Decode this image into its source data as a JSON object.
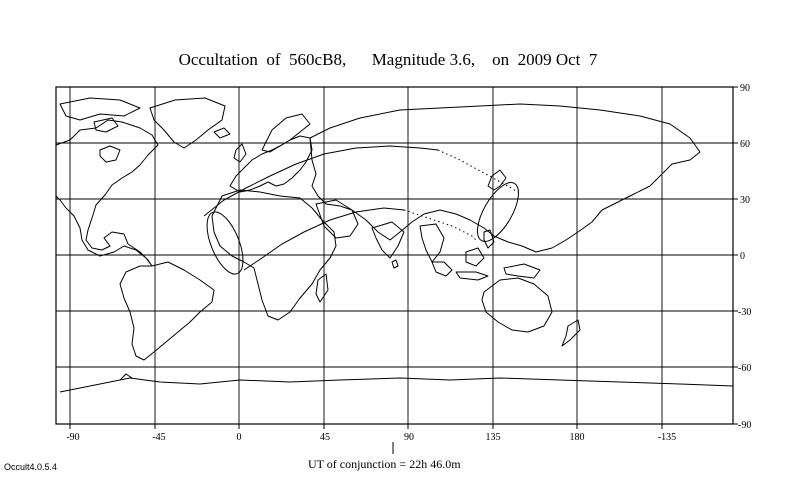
{
  "title": "Occultation  of  560cB8,      Magnitude 3.6,    on  2009 Oct  7",
  "conjunction_label": "UT of conjunction = 22h 46.0m",
  "version": "Occult4.0.5.4",
  "axes": {
    "longitude_ticks": [
      "-90",
      "-45",
      "0",
      "45",
      "90",
      "135",
      "180",
      "-135"
    ],
    "latitude_ticks": [
      "90",
      "60",
      "30",
      "0",
      "-30",
      "-60",
      "-90"
    ]
  },
  "colors": {
    "ink": "#000000",
    "background": "#ffffff"
  }
}
